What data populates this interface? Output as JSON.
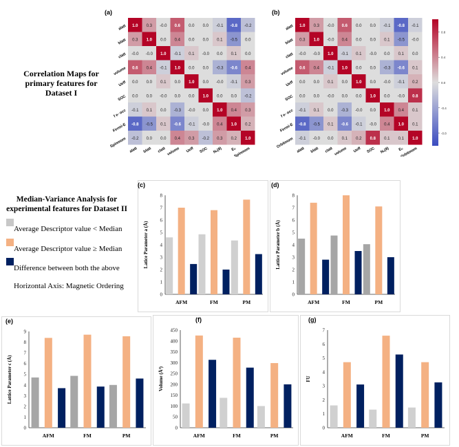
{
  "heatmap_caption": {
    "line1": "Correlation Maps for",
    "line2": "primary features for",
    "line3": "Dataset I"
  },
  "median_caption": {
    "line1": "Median-Variance Analysis for",
    "line2": "experimental features for Dataset II"
  },
  "legend": {
    "below_label": "Average Descriptor value < Median",
    "above_label": "Average Descriptor value ≥ Median",
    "diff_label": "Difference between both the above",
    "axis_note": "Horizontal Axis: Magnetic Ordering"
  },
  "colors": {
    "below": "#c8c8c8",
    "above": "#f4b183",
    "diff": "#002060",
    "neg": "#3b4cc0",
    "pos": "#b40426"
  },
  "colorbar_ticks": [
    "0.8",
    "0.4",
    "0.0",
    "-0.4",
    "-0.8"
  ],
  "chart_data": [
    {
      "id": "a",
      "panel": "(a)",
      "type": "heatmap",
      "labels": [
        "alatt",
        "blatt",
        "clatt",
        "volume",
        "Ueff",
        "SOC",
        "f e- occ",
        "Fermi-E",
        "Spinmom"
      ],
      "xlabels": [
        "alatt",
        "blatt",
        "clatt",
        "volume",
        "Ueff",
        "SOC",
        "Nₒ(θ)",
        "Eₒ",
        "Spinmom"
      ],
      "matrix": [
        [
          1.0,
          0.3,
          -0.0,
          0.6,
          0.0,
          0.0,
          -0.1,
          -0.8,
          -0.2
        ],
        [
          0.3,
          1.0,
          0.0,
          0.4,
          0.0,
          0.0,
          0.1,
          -0.5,
          0.0
        ],
        [
          -0.0,
          -0.0,
          1.0,
          -0.1,
          0.1,
          -0.0,
          0.0,
          0.1,
          0.0
        ],
        [
          0.6,
          0.4,
          -0.1,
          1.0,
          0.0,
          0.0,
          -0.3,
          -0.6,
          0.4
        ],
        [
          0.0,
          0.0,
          0.1,
          0.0,
          1.0,
          0.0,
          -0.0,
          -0.1,
          0.3
        ],
        [
          0.0,
          0.0,
          -0.0,
          0.0,
          0.0,
          1.0,
          0.0,
          0.0,
          -0.2
        ],
        [
          -0.1,
          0.1,
          0.0,
          -0.3,
          -0.0,
          0.0,
          1.0,
          0.4,
          0.3
        ],
        [
          -0.8,
          -0.5,
          0.1,
          -0.6,
          -0.1,
          -0.0,
          0.4,
          1.0,
          0.2
        ],
        [
          -0.2,
          0.0,
          0.0,
          0.4,
          0.3,
          -0.2,
          0.3,
          0.2,
          1.0
        ]
      ]
    },
    {
      "id": "b",
      "panel": "(b)",
      "type": "heatmap",
      "labels": [
        "alatt",
        "blatt",
        "clatt",
        "volume",
        "Ueff",
        "SOC",
        "f e- occ",
        "Fermi-E",
        "Orbitmom"
      ],
      "xlabels": [
        "alatt",
        "blatt",
        "clatt",
        "volume",
        "Ueff",
        "SOC",
        "Nₒ(θ)",
        "Eₒ",
        "Orbitmom"
      ],
      "matrix": [
        [
          1.0,
          0.3,
          -0.0,
          0.6,
          0.0,
          0.0,
          -0.1,
          -0.8,
          -0.1
        ],
        [
          0.3,
          1.0,
          -0.0,
          0.4,
          0.0,
          0.0,
          0.1,
          -0.5,
          -0.0
        ],
        [
          -0.0,
          -0.0,
          1.0,
          -0.1,
          0.1,
          -0.0,
          0.0,
          0.1,
          0.0
        ],
        [
          0.6,
          0.4,
          -0.1,
          1.0,
          0.0,
          0.0,
          -0.3,
          -0.6,
          0.1
        ],
        [
          0.0,
          0.0,
          0.1,
          0.0,
          1.0,
          0.0,
          -0.0,
          -0.1,
          0.2
        ],
        [
          0.0,
          0.0,
          -0.0,
          0.0,
          0.0,
          1.0,
          0.0,
          -0.0,
          0.8
        ],
        [
          -0.1,
          0.1,
          0.0,
          -0.3,
          -0.0,
          0.0,
          1.0,
          0.4,
          0.1
        ],
        [
          -0.8,
          -0.5,
          0.1,
          -0.6,
          -0.1,
          -0.0,
          0.4,
          1.0,
          0.1
        ],
        [
          -0.1,
          -0.0,
          0.0,
          0.1,
          0.2,
          0.8,
          0.1,
          0.1,
          1.0
        ]
      ]
    },
    {
      "id": "c",
      "panel": "(c)",
      "type": "bar",
      "categories": [
        "AFM",
        "FM",
        "PM"
      ],
      "ylabel": "Latice Parameter a (Å)",
      "ylim": [
        0,
        8
      ],
      "yticks": [
        0,
        1,
        2,
        3,
        4,
        5,
        6,
        7,
        8
      ],
      "series": [
        {
          "name": "Average Descriptor value < Median",
          "values": [
            4.6,
            4.85,
            4.35
          ]
        },
        {
          "name": "Average Descriptor value ≥ Median",
          "values": [
            7.0,
            6.8,
            7.65
          ]
        },
        {
          "name": "Difference between both the above",
          "values": [
            2.45,
            2.0,
            3.25
          ]
        }
      ]
    },
    {
      "id": "d",
      "panel": "(d)",
      "type": "bar",
      "categories": [
        "AFM",
        "FM",
        "PM"
      ],
      "ylabel": "Lattice Parameter b (Å)",
      "ylim": [
        0,
        8
      ],
      "yticks": [
        0,
        1,
        2,
        3,
        4,
        5,
        6,
        7,
        8
      ],
      "series": [
        {
          "name": "Average Descriptor value < Median",
          "values": [
            4.5,
            4.75,
            4.05
          ]
        },
        {
          "name": "Average Descriptor value ≥ Median",
          "values": [
            7.4,
            8.0,
            7.1
          ]
        },
        {
          "name": "Difference between both the above",
          "values": [
            2.8,
            3.5,
            3.0
          ]
        }
      ]
    },
    {
      "id": "e",
      "panel": "(e)",
      "type": "bar",
      "categories": [
        "AFM",
        "FM",
        "PM"
      ],
      "ylabel": "Lattice Parameter c (Å)",
      "ylim": [
        0,
        9
      ],
      "yticks": [
        0,
        1,
        2,
        3,
        4,
        5,
        6,
        7,
        8,
        9
      ],
      "series": [
        {
          "name": "Average Descriptor value < Median",
          "values": [
            4.7,
            4.85,
            4.0
          ]
        },
        {
          "name": "Average Descriptor value ≥ Median",
          "values": [
            8.4,
            8.7,
            8.55
          ]
        },
        {
          "name": "Difference between both the above",
          "values": [
            3.7,
            3.85,
            4.6
          ]
        }
      ]
    },
    {
      "id": "f",
      "panel": "(f)",
      "type": "bar",
      "categories": [
        "AFM",
        "FM",
        "PM"
      ],
      "ylabel": "Volume (Å³)",
      "ylim": [
        0,
        450
      ],
      "yticks": [
        0,
        50,
        100,
        150,
        200,
        250,
        300,
        350,
        400,
        450
      ],
      "series": [
        {
          "name": "Average Descriptor value < Median",
          "values": [
            112,
            138,
            100
          ]
        },
        {
          "name": "Average Descriptor value ≥ Median",
          "values": [
            425,
            415,
            298
          ]
        },
        {
          "name": "Difference between both the above",
          "values": [
            313,
            277,
            200
          ]
        }
      ]
    },
    {
      "id": "g",
      "panel": "(g)",
      "type": "bar",
      "categories": [
        "AFM",
        "FM",
        "PM"
      ],
      "ylabel": "FU",
      "ylim": [
        0,
        7
      ],
      "yticks": [
        0,
        1,
        2,
        3,
        4,
        5,
        6,
        7
      ],
      "series": [
        {
          "name": "Average Descriptor value < Median",
          "values": [
            1.6,
            1.3,
            1.45
          ]
        },
        {
          "name": "Average Descriptor value ≥ Median",
          "values": [
            4.7,
            6.6,
            4.7
          ]
        },
        {
          "name": "Difference between both the above",
          "values": [
            3.1,
            5.25,
            3.25
          ]
        }
      ]
    }
  ]
}
